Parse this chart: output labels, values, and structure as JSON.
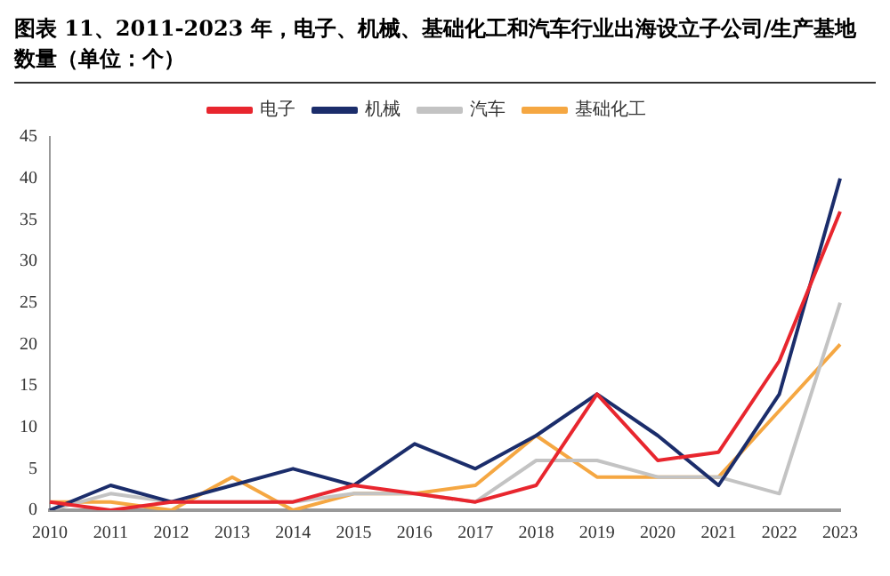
{
  "chart_data": {
    "type": "line",
    "title": "图表 11、2011-2023 年，电子、机械、基础化工和汽车行业出海设立子公司/生产基地数量（单位：个）",
    "categories": [
      "2010",
      "2011",
      "2012",
      "2013",
      "2014",
      "2015",
      "2016",
      "2017",
      "2018",
      "2019",
      "2020",
      "2021",
      "2022",
      "2023"
    ],
    "series": [
      {
        "name": "电子",
        "color": "#e8262e",
        "values": [
          1,
          0,
          1,
          1,
          1,
          3,
          2,
          1,
          3,
          14,
          6,
          7,
          18,
          36
        ]
      },
      {
        "name": "机械",
        "color": "#1b2d6b",
        "values": [
          0,
          3,
          1,
          3,
          5,
          3,
          8,
          5,
          9,
          14,
          9,
          3,
          14,
          40
        ]
      },
      {
        "name": "汽车",
        "color": "#c3c3c3",
        "values": [
          0,
          2,
          1,
          1,
          1,
          2,
          2,
          1,
          6,
          6,
          4,
          4,
          2,
          25
        ]
      },
      {
        "name": "基础化工",
        "color": "#f5a742",
        "values": [
          1,
          1,
          0,
          4,
          0,
          2,
          2,
          3,
          9,
          4,
          4,
          4,
          12,
          20
        ]
      }
    ],
    "ylim": [
      0,
      45
    ],
    "yticks": [
      0,
      5,
      10,
      15,
      20,
      25,
      30,
      35,
      40,
      45
    ],
    "grid": false,
    "legend": "top",
    "marker": "none",
    "line_style": "solid"
  }
}
